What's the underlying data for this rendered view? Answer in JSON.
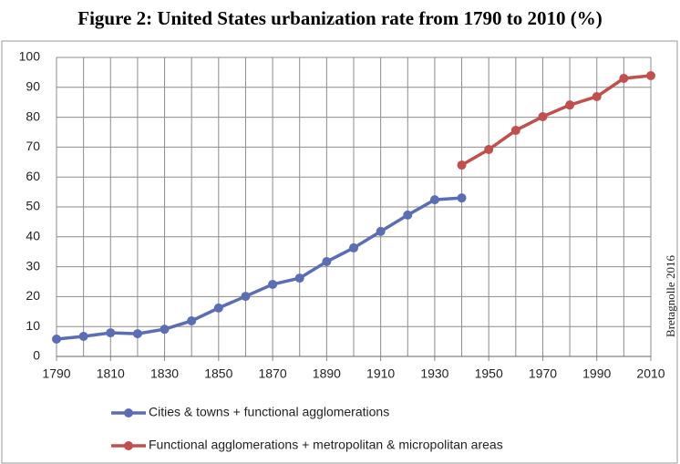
{
  "chart_data": {
    "type": "line",
    "title": "Figure 2: United States urbanization rate from 1790 to 2010 (%)",
    "annotation": "Bretagnolle 2016",
    "x": [
      1790,
      1800,
      1810,
      1820,
      1830,
      1840,
      1850,
      1860,
      1870,
      1880,
      1890,
      1900,
      1910,
      1920,
      1930,
      1940,
      1950,
      1960,
      1970,
      1980,
      1990,
      2000,
      2010
    ],
    "series": [
      {
        "name": "Cities & towns + functional agglomerations",
        "color": "#5b6db3",
        "values": [
          5.8,
          6.7,
          7.9,
          7.6,
          9.1,
          11.9,
          16.2,
          20.1,
          24.1,
          26.2,
          31.7,
          36.3,
          41.8,
          47.3,
          52.4,
          53,
          null,
          null,
          null,
          null,
          null,
          null,
          null
        ]
      },
      {
        "name": "Functional agglomerations + metropolitan & micropolitan areas",
        "color": "#c0504d",
        "values": [
          null,
          null,
          null,
          null,
          null,
          null,
          null,
          null,
          null,
          null,
          null,
          null,
          null,
          null,
          null,
          64,
          69.2,
          75.6,
          80.2,
          84.1,
          86.9,
          93,
          93.9
        ]
      }
    ],
    "xlim": [
      1790,
      2010
    ],
    "xticks": [
      1790,
      1810,
      1830,
      1850,
      1870,
      1890,
      1910,
      1930,
      1950,
      1970,
      1990,
      2010
    ],
    "ylim": [
      0,
      100
    ],
    "yticks": [
      0,
      10,
      20,
      30,
      40,
      50,
      60,
      70,
      80,
      90,
      100
    ],
    "grid": true
  }
}
